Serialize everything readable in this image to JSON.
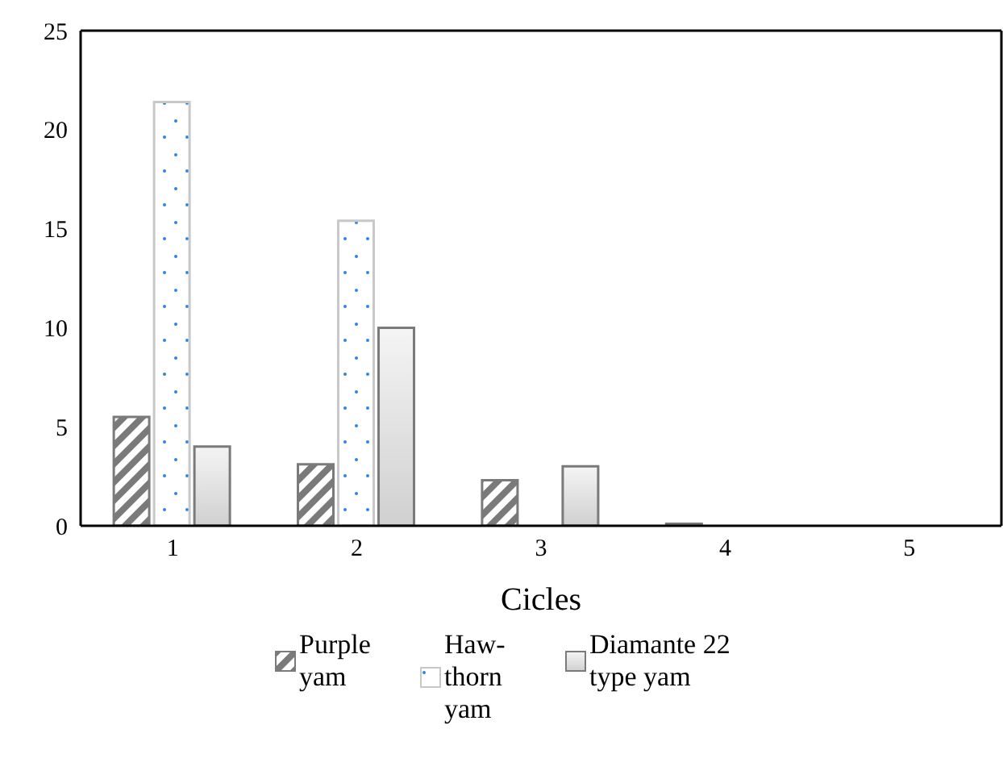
{
  "chart_data": {
    "type": "bar",
    "xlabel": "Cicles",
    "categories": [
      "1",
      "2",
      "3",
      "4",
      "5"
    ],
    "series": [
      {
        "name": "Purple yam",
        "color": "#7a7a7a",
        "values": [
          5.5,
          3.1,
          2.3,
          0.1,
          0
        ]
      },
      {
        "name": "Haw-thorn yam",
        "color": "#c8c8c8",
        "values": [
          21.4,
          15.4,
          0,
          0,
          0
        ]
      },
      {
        "name": "Diamante 22 type yam",
        "color": "#7a7a7a",
        "values": [
          4.0,
          10.0,
          3.0,
          0,
          0
        ]
      }
    ],
    "ylim": [
      0,
      25
    ],
    "yticks": [
      0,
      5,
      10,
      15,
      20,
      25
    ],
    "grid": false,
    "legend": "bottom"
  }
}
